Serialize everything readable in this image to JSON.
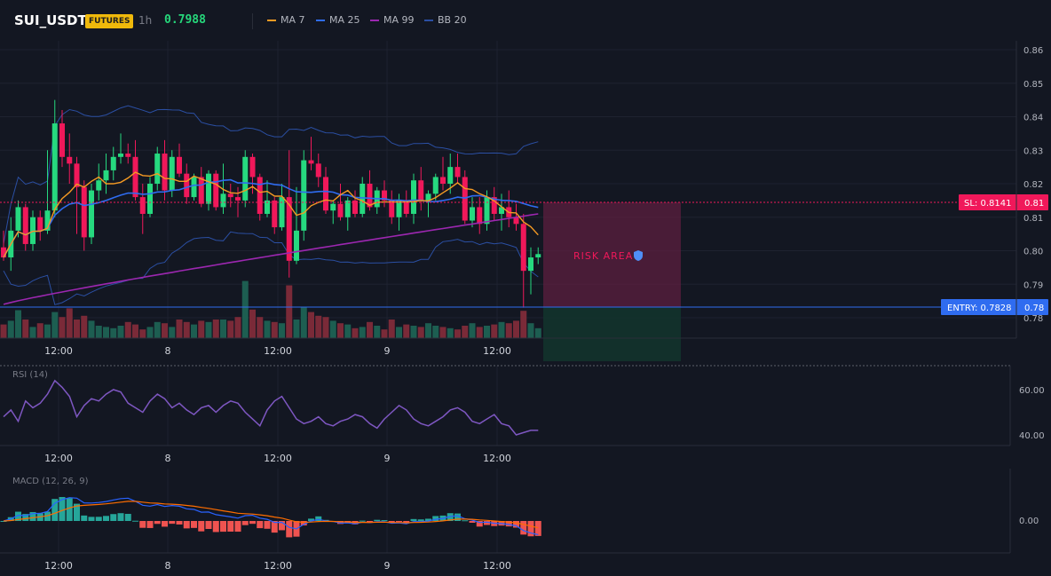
{
  "header": {
    "symbol": "SUI_USDT",
    "badge": "FUTURES",
    "timeframe": "1h",
    "price": "0.7988",
    "indicators": [
      {
        "label": "MA 7",
        "color": "#f59a23"
      },
      {
        "label": "MA 25",
        "color": "#2f6cf0"
      },
      {
        "label": "MA 99",
        "color": "#9c27b0"
      },
      {
        "label": "BB 20",
        "color": "#2b4fa3"
      }
    ]
  },
  "colors": {
    "up": "#26d97f",
    "down": "#f0185a",
    "bg": "#131722",
    "grid": "#1e2230"
  },
  "price_axis": [
    "0.86",
    "0.85",
    "0.84",
    "0.83",
    "0.82",
    "0.81",
    "0.80",
    "0.79",
    "0.78"
  ],
  "time_axis": [
    "12:00",
    "8",
    "12:00",
    "9",
    "12:00"
  ],
  "markers": {
    "sl_label": "SL: 0.8141",
    "sl_axis": "0.81",
    "entry_label": "ENTRY: 0.7828",
    "entry_axis": "0.78",
    "risk_label": "RISK AREA"
  },
  "rsi": {
    "title": "RSI (14)",
    "axis": [
      "60.00",
      "40.00"
    ]
  },
  "macd": {
    "title": "MACD (12, 26, 9)",
    "axis": [
      "0.00"
    ]
  },
  "chart_data": {
    "type": "candlestick",
    "symbol": "SUI_USDT",
    "timeframe": "1h",
    "ylim": [
      0.775,
      0.862
    ],
    "sl": 0.8141,
    "entry": 0.7828,
    "candles": [
      [
        0.801,
        0.806,
        0.797,
        0.798
      ],
      [
        0.798,
        0.81,
        0.794,
        0.806
      ],
      [
        0.806,
        0.815,
        0.804,
        0.813
      ],
      [
        0.813,
        0.814,
        0.8,
        0.802
      ],
      [
        0.802,
        0.812,
        0.8,
        0.81
      ],
      [
        0.81,
        0.812,
        0.803,
        0.806
      ],
      [
        0.806,
        0.83,
        0.805,
        0.812
      ],
      [
        0.812,
        0.845,
        0.81,
        0.838
      ],
      [
        0.838,
        0.842,
        0.825,
        0.828
      ],
      [
        0.828,
        0.835,
        0.82,
        0.826
      ],
      [
        0.826,
        0.828,
        0.805,
        0.819
      ],
      [
        0.819,
        0.821,
        0.8,
        0.804
      ],
      [
        0.804,
        0.82,
        0.802,
        0.818
      ],
      [
        0.818,
        0.826,
        0.815,
        0.821
      ],
      [
        0.821,
        0.829,
        0.817,
        0.824
      ],
      [
        0.824,
        0.831,
        0.821,
        0.828
      ],
      [
        0.828,
        0.835,
        0.826,
        0.829
      ],
      [
        0.829,
        0.832,
        0.826,
        0.828
      ],
      [
        0.828,
        0.833,
        0.815,
        0.816
      ],
      [
        0.816,
        0.82,
        0.805,
        0.811
      ],
      [
        0.811,
        0.822,
        0.81,
        0.82
      ],
      [
        0.82,
        0.831,
        0.818,
        0.829
      ],
      [
        0.829,
        0.833,
        0.815,
        0.818
      ],
      [
        0.818,
        0.83,
        0.816,
        0.828
      ],
      [
        0.828,
        0.832,
        0.822,
        0.823
      ],
      [
        0.823,
        0.826,
        0.814,
        0.816
      ],
      [
        0.816,
        0.823,
        0.815,
        0.822
      ],
      [
        0.822,
        0.825,
        0.813,
        0.814
      ],
      [
        0.814,
        0.824,
        0.812,
        0.823
      ],
      [
        0.823,
        0.824,
        0.812,
        0.813
      ],
      [
        0.813,
        0.826,
        0.811,
        0.817
      ],
      [
        0.817,
        0.82,
        0.813,
        0.816
      ],
      [
        0.816,
        0.819,
        0.81,
        0.815
      ],
      [
        0.815,
        0.83,
        0.813,
        0.828
      ],
      [
        0.828,
        0.829,
        0.817,
        0.822
      ],
      [
        0.822,
        0.823,
        0.809,
        0.811
      ],
      [
        0.811,
        0.821,
        0.81,
        0.815
      ],
      [
        0.815,
        0.816,
        0.805,
        0.807
      ],
      [
        0.807,
        0.82,
        0.806,
        0.816
      ],
      [
        0.816,
        0.83,
        0.792,
        0.797
      ],
      [
        0.797,
        0.819,
        0.796,
        0.806
      ],
      [
        0.806,
        0.83,
        0.803,
        0.827
      ],
      [
        0.827,
        0.834,
        0.824,
        0.826
      ],
      [
        0.826,
        0.829,
        0.819,
        0.822
      ],
      [
        0.822,
        0.825,
        0.811,
        0.812
      ],
      [
        0.812,
        0.815,
        0.808,
        0.814
      ],
      [
        0.814,
        0.82,
        0.809,
        0.81
      ],
      [
        0.81,
        0.816,
        0.806,
        0.815
      ],
      [
        0.815,
        0.818,
        0.81,
        0.811
      ],
      [
        0.811,
        0.822,
        0.81,
        0.82
      ],
      [
        0.82,
        0.824,
        0.812,
        0.813
      ],
      [
        0.813,
        0.819,
        0.811,
        0.818
      ],
      [
        0.818,
        0.821,
        0.813,
        0.815
      ],
      [
        0.815,
        0.818,
        0.808,
        0.81
      ],
      [
        0.81,
        0.817,
        0.806,
        0.815
      ],
      [
        0.815,
        0.818,
        0.81,
        0.811
      ],
      [
        0.811,
        0.823,
        0.808,
        0.821
      ],
      [
        0.821,
        0.825,
        0.812,
        0.815
      ],
      [
        0.815,
        0.818,
        0.81,
        0.817
      ],
      [
        0.817,
        0.823,
        0.815,
        0.822
      ],
      [
        0.822,
        0.828,
        0.818,
        0.82
      ],
      [
        0.82,
        0.829,
        0.817,
        0.825
      ],
      [
        0.825,
        0.829,
        0.82,
        0.822
      ],
      [
        0.822,
        0.824,
        0.808,
        0.809
      ],
      [
        0.809,
        0.816,
        0.807,
        0.813
      ],
      [
        0.813,
        0.816,
        0.805,
        0.808
      ],
      [
        0.808,
        0.818,
        0.806,
        0.816
      ],
      [
        0.816,
        0.819,
        0.809,
        0.811
      ],
      [
        0.811,
        0.817,
        0.806,
        0.813
      ],
      [
        0.813,
        0.818,
        0.807,
        0.81
      ],
      [
        0.81,
        0.814,
        0.806,
        0.808
      ],
      [
        0.808,
        0.811,
        0.783,
        0.794
      ],
      [
        0.794,
        0.801,
        0.787,
        0.798
      ],
      [
        0.798,
        0.801,
        0.796,
        0.799
      ]
    ],
    "volume": [
      22,
      28,
      45,
      30,
      18,
      24,
      22,
      42,
      34,
      48,
      30,
      36,
      28,
      20,
      18,
      16,
      20,
      26,
      22,
      14,
      18,
      26,
      24,
      18,
      30,
      26,
      22,
      28,
      26,
      30,
      30,
      28,
      34,
      92,
      46,
      34,
      28,
      26,
      24,
      85,
      30,
      50,
      42,
      36,
      34,
      28,
      24,
      22,
      16,
      18,
      26,
      20,
      14,
      30,
      18,
      22,
      20,
      18,
      24,
      20,
      18,
      16,
      14,
      20,
      24,
      18,
      20,
      22,
      26,
      24,
      28,
      44,
      24,
      16
    ],
    "rsi": [
      48,
      51,
      46,
      55,
      52,
      54,
      58,
      64,
      61,
      57,
      48,
      53,
      56,
      55,
      58,
      60,
      59,
      54,
      52,
      50,
      55,
      58,
      56,
      52,
      54,
      51,
      49,
      52,
      53,
      50,
      53,
      55,
      54,
      50,
      47,
      44,
      51,
      55,
      57,
      52,
      47,
      45,
      46,
      48,
      45,
      44,
      46,
      47,
      49,
      48,
      45,
      43,
      47,
      50,
      53,
      51,
      47,
      45,
      44,
      46,
      48,
      51,
      52,
      50,
      46,
      45,
      47,
      49,
      45,
      44,
      40,
      41,
      42,
      42
    ]
  }
}
